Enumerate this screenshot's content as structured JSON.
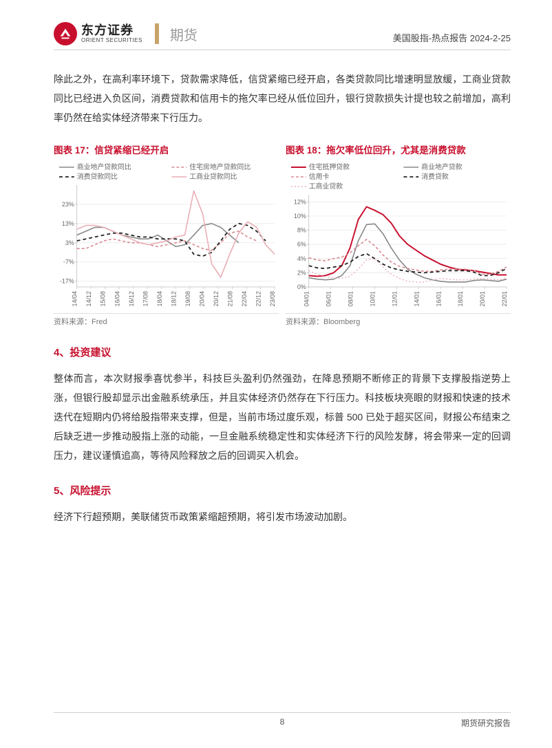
{
  "header": {
    "brand_cn": "东方证券",
    "brand_en": "ORIENT SECURITIES",
    "futures_label": "期货",
    "meta": "美国股指-热点报告 2024-2-25"
  },
  "intro_paragraph": "除此之外，在高利率环境下，贷款需求降低，信贷紧缩已经开启，各类贷款同比增速明显放缓，工商业贷款同比已经进入负区间，消费贷款和信用卡的拖欠率已经从低位回升，银行贷款损失计提也较之前增加，高利率仍然在给实体经济带来下行压力。",
  "chart17": {
    "title": "图表 17：信贷紧缩已经开启",
    "type": "line",
    "source": "资料来源：Fred",
    "x_labels": [
      "14/04",
      "14/12",
      "15/08",
      "16/04",
      "16/12",
      "17/08",
      "18/04",
      "18/12",
      "19/08",
      "20/04",
      "20/12",
      "21/08",
      "22/04",
      "22/12",
      "23/08"
    ],
    "y_ticks": [
      -17,
      -7,
      3,
      13,
      23
    ],
    "y_tick_labels": [
      "-17%",
      "-7%",
      "3%",
      "13%",
      "23%"
    ],
    "ylim": [
      -20,
      33
    ],
    "background_color": "#ffffff",
    "grid_color": "#e5e5e5",
    "axis_color": "#bdbdbd",
    "tick_fontsize": 9,
    "legend_fontsize": 10,
    "series": [
      {
        "name": "商业地产贷款同比",
        "color": "#888888",
        "dash": "none",
        "width": 1.6,
        "values": [
          7,
          9,
          11,
          11,
          9,
          7,
          6,
          5,
          5,
          7,
          4,
          1,
          2,
          7,
          12,
          13,
          11,
          7,
          3
        ]
      },
      {
        "name": "住宅房地产贷款同比",
        "color": "#d8888f",
        "dash": "4,3",
        "width": 1.6,
        "values": [
          0,
          0,
          2,
          4,
          5,
          4,
          3,
          3,
          2,
          1,
          2,
          3,
          4,
          2,
          0,
          -1,
          3,
          8,
          9,
          6,
          4
        ]
      },
      {
        "name": "消费贷款同比",
        "color": "#222222",
        "dash": "5,4",
        "width": 1.8,
        "values": [
          4,
          5,
          6,
          7,
          8,
          8,
          7,
          6,
          6,
          5,
          5,
          5,
          4,
          -3,
          -4,
          -2,
          4,
          10,
          13,
          12,
          9,
          4
        ]
      },
      {
        "name": "工商业贷款同比",
        "color": "#e8aeb4",
        "dash": "none",
        "width": 1.6,
        "values": [
          10,
          12,
          12,
          11,
          9,
          7,
          5,
          3,
          2,
          3,
          4,
          6,
          7,
          30,
          18,
          -8,
          -15,
          -3,
          8,
          14,
          11,
          2,
          -3
        ]
      }
    ]
  },
  "chart18": {
    "title": "图表 18：拖欠率低位回升，尤其是消费贷款",
    "type": "line",
    "source": "资料来源：Bloomberg",
    "x_labels": [
      "04/01",
      "06/01",
      "08/01",
      "10/01",
      "12/01",
      "14/01",
      "16/01",
      "18/01",
      "20/01",
      "22/01"
    ],
    "y_ticks": [
      0,
      2,
      4,
      6,
      8,
      10,
      12
    ],
    "y_tick_labels": [
      "0%",
      "2%",
      "4%",
      "6%",
      "8%",
      "10%",
      "12%"
    ],
    "ylim": [
      0,
      13
    ],
    "background_color": "#ffffff",
    "grid_color": "#e5e5e5",
    "axis_color": "#bdbdbd",
    "tick_fontsize": 9,
    "legend_fontsize": 10,
    "series": [
      {
        "name": "住宅抵押贷款",
        "color": "#c8102e",
        "dash": "none",
        "width": 2.0,
        "values": [
          1.6,
          1.5,
          1.6,
          2.0,
          3.0,
          5.5,
          9.5,
          11.3,
          10.8,
          10.2,
          9.0,
          7.2,
          6.0,
          5.2,
          4.4,
          3.8,
          3.2,
          2.8,
          2.5,
          2.4,
          2.3,
          2.1,
          1.9,
          1.7,
          1.7
        ]
      },
      {
        "name": "商业地产贷款",
        "color": "#888888",
        "dash": "none",
        "width": 1.6,
        "values": [
          1.3,
          1.1,
          1.0,
          1.1,
          1.6,
          3.0,
          6.5,
          8.8,
          8.9,
          7.5,
          5.5,
          3.8,
          2.5,
          1.8,
          1.3,
          1.0,
          0.8,
          0.7,
          0.7,
          0.7,
          0.9,
          1.0,
          0.9,
          0.8,
          1.1
        ]
      },
      {
        "name": "信用卡",
        "color": "#d8888f",
        "dash": "4,3",
        "width": 1.6,
        "values": [
          4.1,
          3.8,
          3.7,
          4.0,
          4.2,
          4.8,
          5.8,
          6.7,
          5.8,
          4.5,
          3.5,
          2.9,
          2.6,
          2.4,
          2.2,
          2.2,
          2.4,
          2.5,
          2.5,
          2.5,
          2.3,
          1.8,
          1.8,
          2.2,
          2.8
        ]
      },
      {
        "name": "消费贷款",
        "color": "#222222",
        "dash": "5,4",
        "width": 1.8,
        "values": [
          3.0,
          2.7,
          2.6,
          2.8,
          3.0,
          3.5,
          4.3,
          4.7,
          4.0,
          3.2,
          2.7,
          2.4,
          2.2,
          2.1,
          2.0,
          2.1,
          2.2,
          2.3,
          2.3,
          2.3,
          2.1,
          1.6,
          1.6,
          2.0,
          2.6
        ]
      },
      {
        "name": "工商业贷款",
        "color": "#e8aeb4",
        "dash": "2,3",
        "width": 1.4,
        "values": [
          2.3,
          1.8,
          1.5,
          1.3,
          1.2,
          1.5,
          2.5,
          3.8,
          4.0,
          2.8,
          1.8,
          1.2,
          0.8,
          0.7,
          0.7,
          1.0,
          1.2,
          1.1,
          1.0,
          1.0,
          1.1,
          1.2,
          1.1,
          1.0,
          1.2
        ]
      }
    ]
  },
  "section4": {
    "heading": "4、投资建议",
    "body": "整体而言，本次财报季喜忧参半，科技巨头盈利仍然强劲，在降息预期不断修正的背景下支撑股指逆势上涨，但银行股却显示出金融系统承压，并且实体经济仍然存在下行压力。科技板块亮眼的财报和快速的技术迭代在短期内仍将给股指带来支撑，但是，当前市场过度乐观，标普 500 已处于超买区间，财报公布结束之后缺乏进一步推动股指上涨的动能，一旦金融系统稳定性和实体经济下行的风险发酵，将会带来一定的回调压力，建议谨慎追高，等待风险释放之后的回调买入机会。"
  },
  "section5": {
    "heading": "5、风险提示",
    "body": "经济下行超预期，美联储货币政策紧缩超预期，将引发市场波动加剧。"
  },
  "footer": {
    "page_number": "8",
    "right_label": "期货研究报告"
  },
  "colors": {
    "brand_red": "#c8102e",
    "brand_gold": "#c8a46a",
    "text": "#333333",
    "muted": "#9a9a9a"
  }
}
